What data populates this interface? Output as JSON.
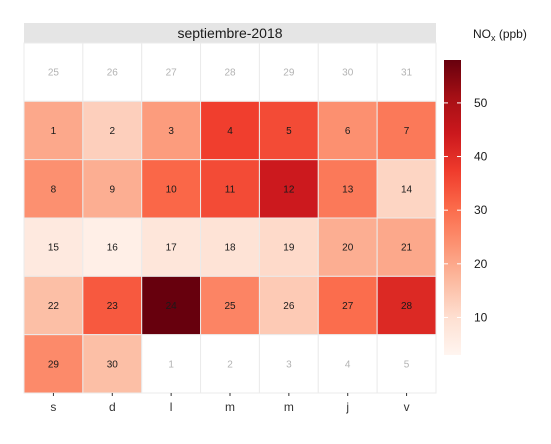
{
  "chart_data": {
    "type": "heatmap",
    "title": "septiembre-2018",
    "legend_title": "NO",
    "legend_title_sub": "x",
    "legend_title_unit": " (ppb)",
    "legend_ticks": [
      10,
      20,
      30,
      40,
      50
    ],
    "legend_range": [
      3,
      58
    ],
    "colors": {
      "low": "#fff5f0",
      "high": "#67000d",
      "scale": [
        "#fff5f0",
        "#fee0d2",
        "#fcbba1",
        "#fc9272",
        "#fb6a4a",
        "#ef3b2c",
        "#cb181d",
        "#a50f15",
        "#67000d"
      ],
      "strip": "#e5e5e5",
      "outside_day_text": "#b3b3b3",
      "day_text": "#1a1a1a"
    },
    "weekday_labels": [
      "s",
      "d",
      "l",
      "m",
      "m",
      "j",
      "v"
    ],
    "weeks": [
      [
        {
          "day": "25",
          "out": true
        },
        {
          "day": "26",
          "out": true
        },
        {
          "day": "27",
          "out": true
        },
        {
          "day": "28",
          "out": true
        },
        {
          "day": "29",
          "out": true
        },
        {
          "day": "30",
          "out": true
        },
        {
          "day": "31",
          "out": true
        }
      ],
      [
        {
          "day": "1",
          "value": 20
        },
        {
          "day": "2",
          "value": 13
        },
        {
          "day": "3",
          "value": 22
        },
        {
          "day": "4",
          "value": 37
        },
        {
          "day": "5",
          "value": 35
        },
        {
          "day": "6",
          "value": 24
        },
        {
          "day": "7",
          "value": 28
        }
      ],
      [
        {
          "day": "8",
          "value": 24
        },
        {
          "day": "9",
          "value": 19
        },
        {
          "day": "10",
          "value": 31
        },
        {
          "day": "11",
          "value": 35
        },
        {
          "day": "12",
          "value": 44
        },
        {
          "day": "13",
          "value": 28
        },
        {
          "day": "14",
          "value": 12
        }
      ],
      [
        {
          "day": "15",
          "value": 7
        },
        {
          "day": "16",
          "value": 5
        },
        {
          "day": "17",
          "value": 8
        },
        {
          "day": "18",
          "value": 9
        },
        {
          "day": "19",
          "value": 11
        },
        {
          "day": "20",
          "value": 19
        },
        {
          "day": "21",
          "value": 20
        }
      ],
      [
        {
          "day": "22",
          "value": 16
        },
        {
          "day": "23",
          "value": 33
        },
        {
          "day": "24",
          "value": 58
        },
        {
          "day": "25",
          "value": 26
        },
        {
          "day": "26",
          "value": 14
        },
        {
          "day": "27",
          "value": 30
        },
        {
          "day": "28",
          "value": 41
        }
      ],
      [
        {
          "day": "29",
          "value": 25
        },
        {
          "day": "30",
          "value": 16
        },
        {
          "day": "1",
          "out": true
        },
        {
          "day": "2",
          "out": true
        },
        {
          "day": "3",
          "out": true
        },
        {
          "day": "4",
          "out": true
        },
        {
          "day": "5",
          "out": true
        }
      ]
    ]
  }
}
